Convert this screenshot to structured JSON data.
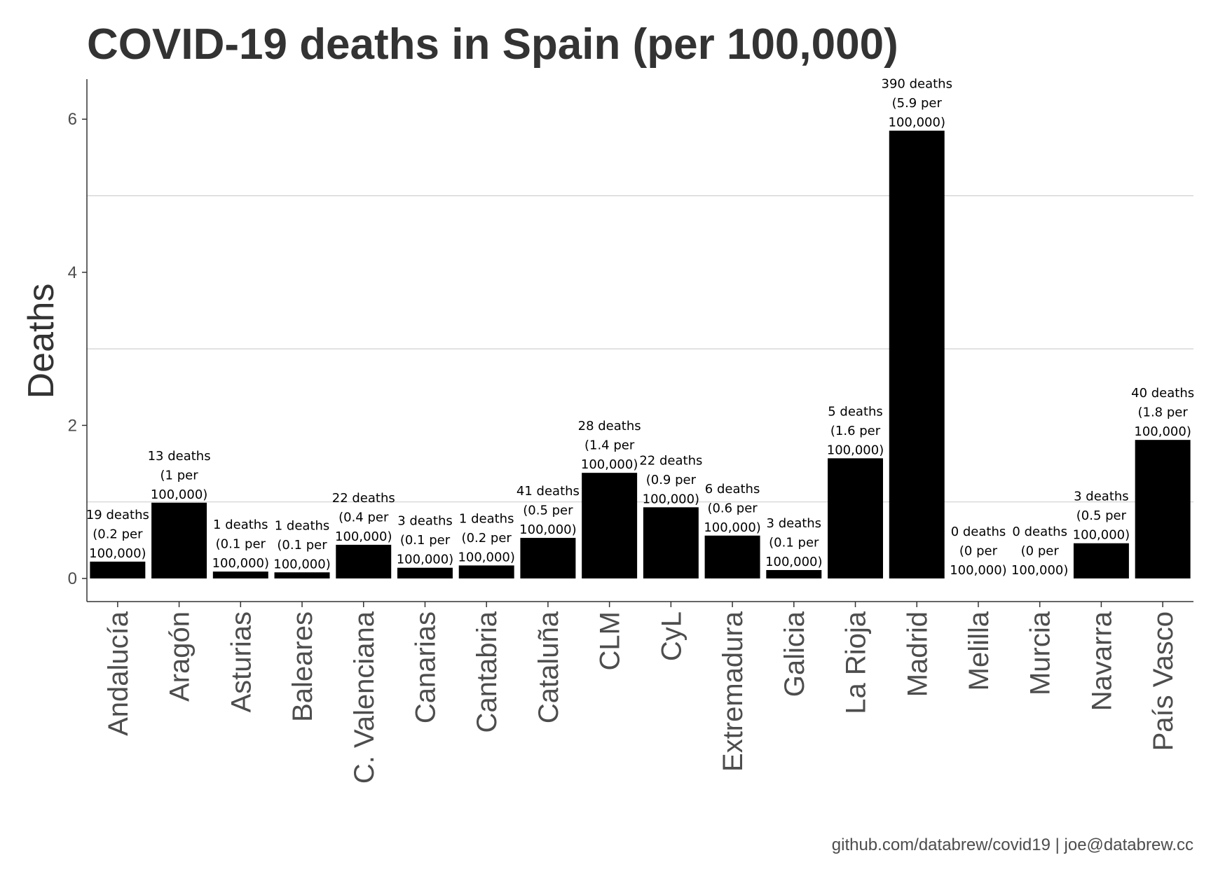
{
  "chart_data": {
    "type": "bar",
    "title": "COVID-19 deaths in Spain (per 100,000)",
    "xlabel": "",
    "ylabel": "Deaths",
    "ylim": [
      0,
      6.5
    ],
    "yticks": [
      0,
      2,
      4,
      6
    ],
    "grid": "horizontal",
    "bar_color": "#000000",
    "categories": [
      "Andalucía",
      "Aragón",
      "Asturias",
      "Baleares",
      "C. Valenciana",
      "Canarias",
      "Cantabria",
      "Cataluña",
      "CLM",
      "CyL",
      "Extremadura",
      "Galicia",
      "La Rioja",
      "Madrid",
      "Melilla",
      "Murcia",
      "Navarra",
      "País Vasco"
    ],
    "values": [
      0.22,
      0.99,
      0.09,
      0.08,
      0.44,
      0.14,
      0.17,
      0.53,
      1.38,
      0.93,
      0.56,
      0.11,
      1.57,
      5.85,
      0.0,
      0.0,
      0.46,
      1.81
    ],
    "labels": [
      [
        "19 deaths",
        "(0.2 per",
        "100,000)"
      ],
      [
        "13 deaths",
        "(1 per",
        "100,000)"
      ],
      [
        "1 deaths",
        "(0.1 per",
        "100,000)"
      ],
      [
        "1 deaths",
        "(0.1 per",
        "100,000)"
      ],
      [
        "22 deaths",
        "(0.4 per",
        "100,000)"
      ],
      [
        "3 deaths",
        "(0.1 per",
        "100,000)"
      ],
      [
        "1 deaths",
        "(0.2 per",
        "100,000)"
      ],
      [
        "41 deaths",
        "(0.5 per",
        "100,000)"
      ],
      [
        "28 deaths",
        "(1.4 per",
        "100,000)"
      ],
      [
        "22 deaths",
        "(0.9 per",
        "100,000)"
      ],
      [
        "6 deaths",
        "(0.6 per",
        "100,000)"
      ],
      [
        "3 deaths",
        "(0.1 per",
        "100,000)"
      ],
      [
        "5 deaths",
        "(1.6 per",
        "100,000)"
      ],
      [
        "390 deaths",
        "(5.9 per",
        "100,000)"
      ],
      [
        "0 deaths",
        "(0 per",
        "100,000)"
      ],
      [
        "0 deaths",
        "(0 per",
        "100,000)"
      ],
      [
        "3 deaths",
        "(0.5 per",
        "100,000)"
      ],
      [
        "40 deaths",
        "(1.8 per",
        "100,000)"
      ]
    ]
  },
  "caption": "github.com/databrew/covid19 | joe@databrew.cc"
}
